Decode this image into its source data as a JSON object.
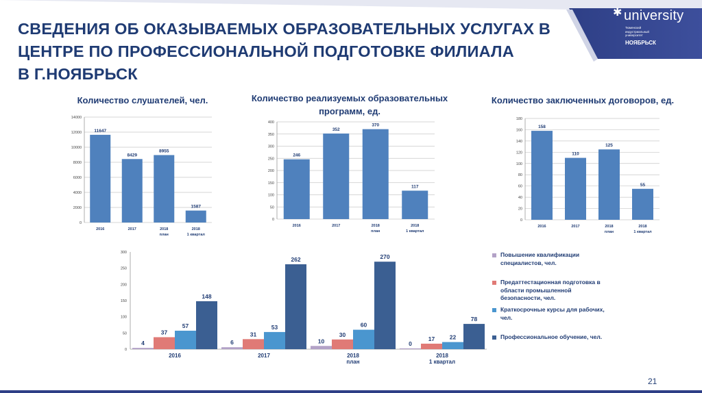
{
  "title_lines": [
    "СВЕДЕНИЯ ОБ ОКАЗЫВАЕМЫХ ОБРАЗОВАТЕЛЬНЫХ УСЛУГАХ В",
    "ЦЕНТРЕ ПО ПРОФЕССИОНАЛЬНОЙ  ПОДГОТОВКЕ ФИЛИАЛА",
    "В Г.НОЯБРЬСК"
  ],
  "logo": {
    "word": "university",
    "subtitle": "Тюменский индустриальный университет",
    "city": "НОЯБРЬСК"
  },
  "page_number": "21",
  "colors": {
    "title": "#1f3b73",
    "bar_blue": "#4f81bd",
    "banner": "#2e3f86",
    "series": [
      "#b3a2c7",
      "#e07a76",
      "#4a96cf",
      "#3b5f92"
    ]
  },
  "chart_data": [
    {
      "type": "bar",
      "title": "Количество слушателей, чел.",
      "categories": [
        [
          "2016"
        ],
        [
          "2017"
        ],
        [
          "2018",
          "план"
        ],
        [
          "2018",
          "1 квартал"
        ]
      ],
      "values": [
        11647,
        8429,
        8955,
        1587
      ],
      "yticks": [
        0,
        2000,
        4000,
        6000,
        8000,
        10000,
        12000,
        14000
      ],
      "ylim": [
        0,
        14000
      ],
      "grid": true
    },
    {
      "type": "bar",
      "title_lines": [
        "Количество реализуемых образовательных",
        "программ, ед."
      ],
      "categories": [
        [
          "2016"
        ],
        [
          "2017"
        ],
        [
          "2018",
          "план"
        ],
        [
          "2018",
          "1 квартал"
        ]
      ],
      "values": [
        246,
        352,
        370,
        117
      ],
      "yticks": [
        0,
        50,
        100,
        150,
        200,
        250,
        300,
        350,
        400
      ],
      "ylim": [
        0,
        400
      ],
      "grid": true
    },
    {
      "type": "bar",
      "title": "Количество заключенных договоров, ед.",
      "categories": [
        [
          "2016"
        ],
        [
          "2017"
        ],
        [
          "2018",
          "план"
        ],
        [
          "2018",
          "1 квартал"
        ]
      ],
      "values": [
        158,
        110,
        125,
        55
      ],
      "yticks": [
        0,
        20,
        40,
        60,
        80,
        100,
        120,
        140,
        160,
        180
      ],
      "ylim": [
        0,
        180
      ],
      "grid": true
    },
    {
      "type": "bar",
      "categories": [
        [
          "2016"
        ],
        [
          "2017"
        ],
        [
          "2018",
          "план"
        ],
        [
          "2018",
          "1 квартал"
        ]
      ],
      "series": [
        {
          "name": "Повышение квалификации специалистов, чел.",
          "values": [
            4,
            6,
            10,
            0
          ]
        },
        {
          "name": "Предаттестационная подготовка в области промышленной безопасности, чел.",
          "values": [
            37,
            31,
            30,
            17
          ]
        },
        {
          "name": "Краткосрочные курсы для рабочих, чел.",
          "values": [
            57,
            53,
            60,
            22
          ]
        },
        {
          "name": "Профессиональное обучение, чел.",
          "values": [
            148,
            262,
            270,
            78
          ]
        }
      ],
      "yticks": [
        0,
        50,
        100,
        150,
        200,
        250,
        300
      ],
      "ylim": [
        0,
        300
      ],
      "grid": false,
      "legend": "right"
    }
  ]
}
